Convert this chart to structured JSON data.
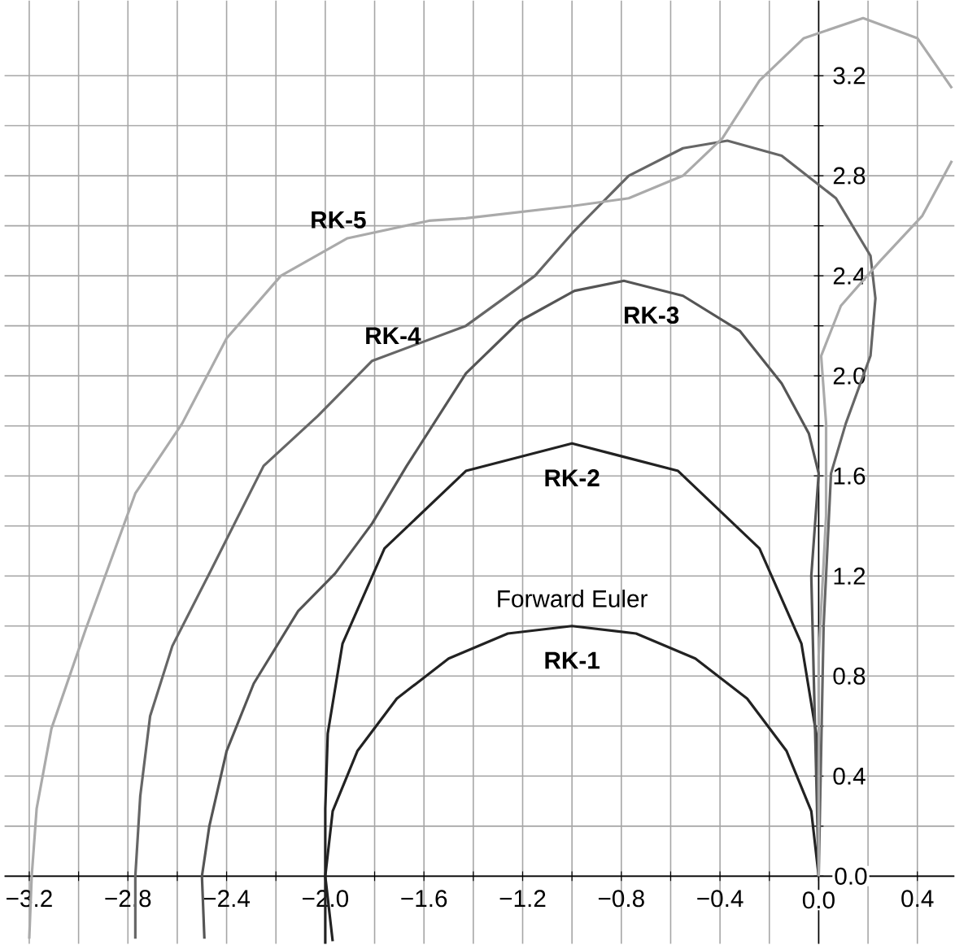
{
  "chart_data": {
    "type": "line",
    "xlim": [
      -3.3,
      0.55
    ],
    "ylim": [
      -0.27,
      3.5
    ],
    "xticks": [
      {
        "value": -3.2,
        "label": "−3.2"
      },
      {
        "value": -2.8,
        "label": "−2.8"
      },
      {
        "value": -2.4,
        "label": "−2.4"
      },
      {
        "value": -2.0,
        "label": "−2.0"
      },
      {
        "value": -1.6,
        "label": "−1.6"
      },
      {
        "value": -1.2,
        "label": "−1.2"
      },
      {
        "value": -0.8,
        "label": "−0.8"
      },
      {
        "value": -0.4,
        "label": "−0.4"
      },
      {
        "value": 0.0,
        "label": "0.0"
      },
      {
        "value": 0.4,
        "label": "0.4"
      }
    ],
    "yticks": [
      {
        "value": 0.0,
        "label": "0.0"
      },
      {
        "value": 0.4,
        "label": "0.4"
      },
      {
        "value": 0.8,
        "label": "0.8"
      },
      {
        "value": 1.2,
        "label": "1.2"
      },
      {
        "value": 1.6,
        "label": "1.6"
      },
      {
        "value": 2.0,
        "label": "2.0"
      },
      {
        "value": 2.4,
        "label": "2.4"
      },
      {
        "value": 2.8,
        "label": "2.8"
      },
      {
        "value": 3.2,
        "label": "3.2"
      }
    ],
    "grid": true,
    "marker": "none",
    "line_style": "solid",
    "series": [
      {
        "name": "RK-1",
        "color": "#222222",
        "x": [
          0,
          -0.03,
          -0.13,
          -0.29,
          -0.5,
          -0.74,
          -1,
          -1.26,
          -1.5,
          -1.71,
          -1.87,
          -1.97,
          -2,
          -1.97
        ],
        "values": [
          0,
          0.26,
          0.5,
          0.71,
          0.87,
          0.97,
          1,
          0.97,
          0.87,
          0.71,
          0.5,
          0.26,
          0,
          -0.26
        ]
      },
      {
        "name": "RK-2",
        "color": "#222222",
        "x": [
          0,
          0,
          -0.01,
          -0.07,
          -0.24,
          -0.57,
          -1,
          -1.43,
          -1.76,
          -1.93,
          -1.99,
          -2,
          -2
        ],
        "values": [
          0,
          0.27,
          0.57,
          0.93,
          1.31,
          1.62,
          1.73,
          1.62,
          1.31,
          0.93,
          0.57,
          0.27,
          -0.27
        ]
      },
      {
        "name": "RK-3",
        "color": "#555555",
        "x": [
          -2.49,
          -2.5,
          -2.47,
          -2.4,
          -2.29,
          -2.11,
          -1.96,
          -1.81,
          -1.67,
          -1.43,
          -1.21,
          -0.99,
          -0.79,
          -0.55,
          -0.32,
          -0.15,
          -0.04,
          0,
          -0.03,
          -0.02,
          0
        ],
        "values": [
          -0.25,
          0,
          0.2,
          0.5,
          0.77,
          1.06,
          1.21,
          1.41,
          1.64,
          2.01,
          2.22,
          2.34,
          2.38,
          2.32,
          2.18,
          1.97,
          1.77,
          1.61,
          1.2,
          0.8,
          0
        ]
      },
      {
        "name": "RK-4",
        "color": "#666666",
        "x": [
          -2.77,
          -2.77,
          -2.75,
          -2.71,
          -2.62,
          -2.47,
          -2.25,
          -2.03,
          -1.81,
          -1.43,
          -1.15,
          -0.99,
          -0.77,
          -0.55,
          -0.37,
          -0.15,
          0.07,
          0.21,
          0.23,
          0.21,
          0.11,
          0.05,
          0.02,
          0
        ],
        "values": [
          -0.25,
          0,
          0.32,
          0.64,
          0.92,
          1.21,
          1.64,
          1.84,
          2.06,
          2.2,
          2.4,
          2.58,
          2.8,
          2.91,
          2.94,
          2.88,
          2.71,
          2.48,
          2.31,
          2.08,
          1.81,
          1.61,
          1.0,
          0
        ]
      },
      {
        "name": "RK-5",
        "color": "#aaaaaa",
        "x": [
          -3.2,
          -3.19,
          -3.17,
          -3.11,
          -2.97,
          -2.77,
          -2.58,
          -2.4,
          -2.18,
          -1.91,
          -1.58,
          -1.43,
          -0.99,
          -0.77,
          -0.55,
          -0.39,
          -0.24,
          -0.06,
          0.18,
          0.4,
          0.54,
          null,
          0.54,
          0.42,
          0.25,
          0.09,
          0.01,
          0.03,
          0.03,
          0,
          0
        ],
        "values": [
          -0.25,
          0,
          0.27,
          0.59,
          0.99,
          1.53,
          1.81,
          2.15,
          2.4,
          2.55,
          2.62,
          2.63,
          2.68,
          2.71,
          2.8,
          2.95,
          3.18,
          3.35,
          3.43,
          3.35,
          3.15,
          null,
          2.86,
          2.64,
          2.46,
          2.28,
          2.08,
          1.81,
          1.44,
          0.88,
          0
        ]
      }
    ],
    "annotations": [
      "Forward Euler"
    ]
  }
}
